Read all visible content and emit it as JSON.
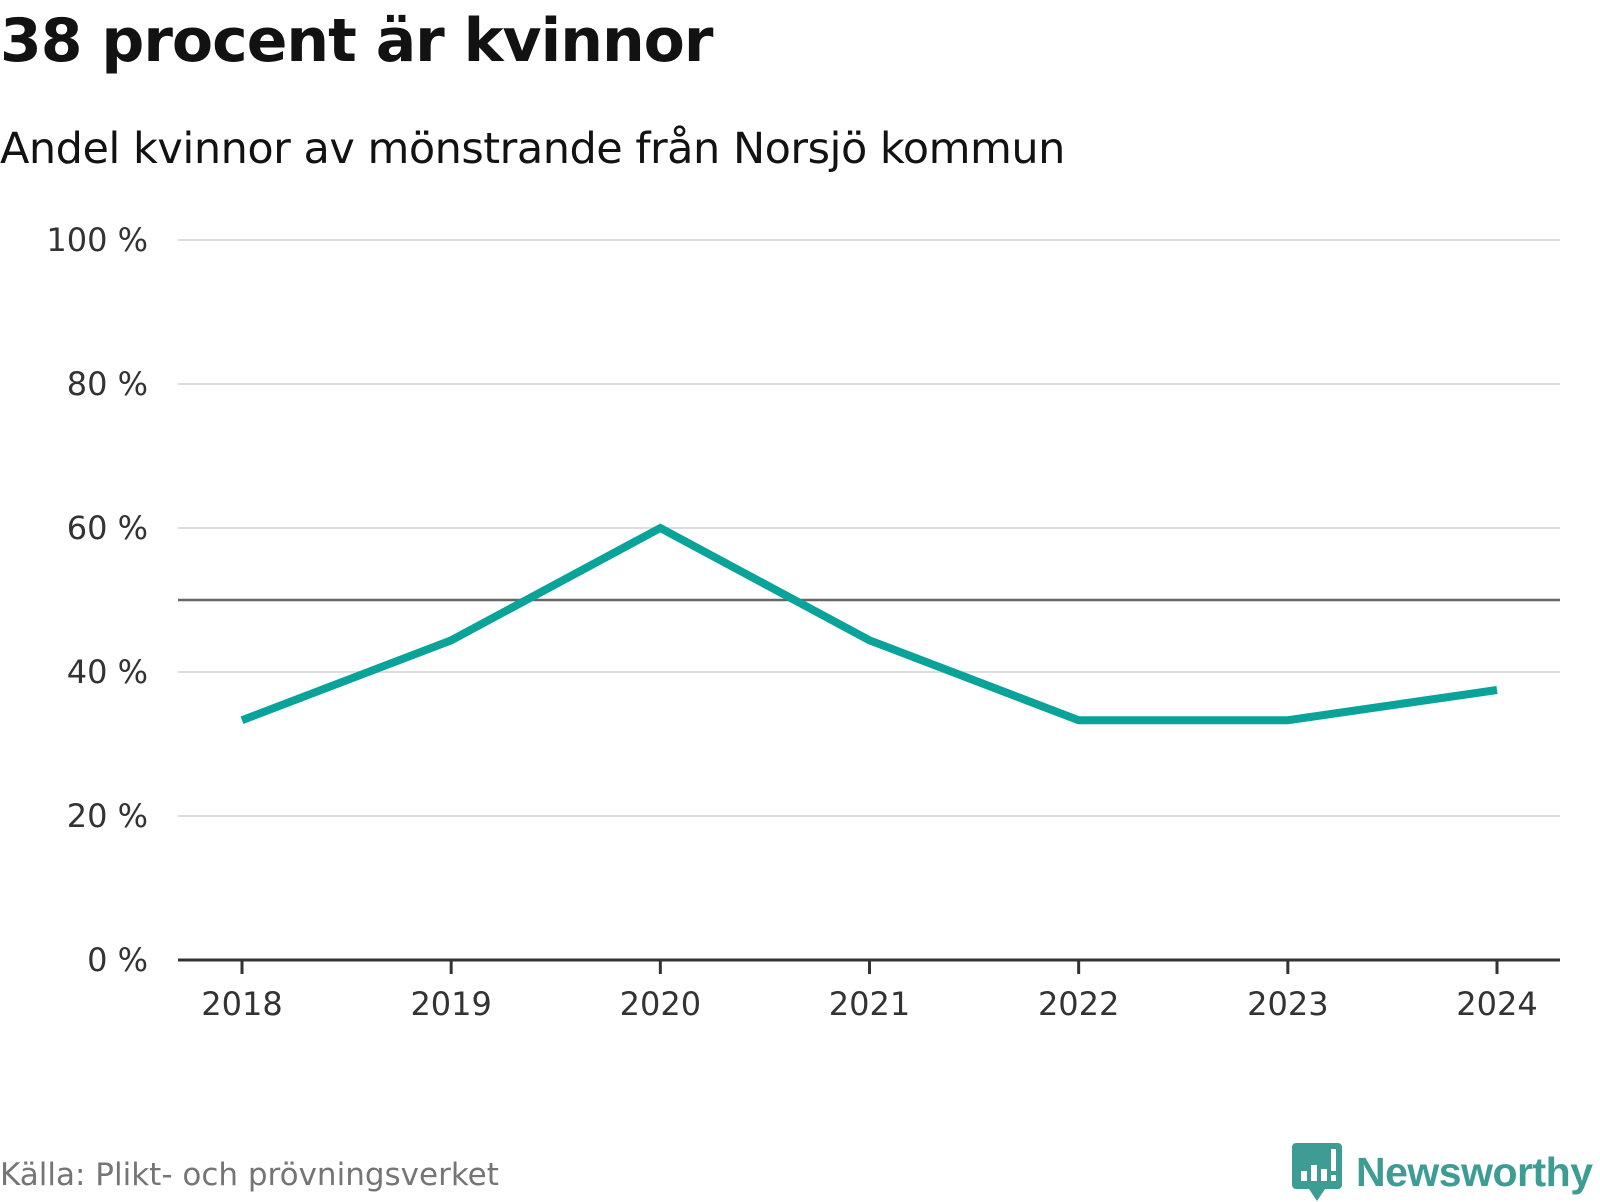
{
  "header": {
    "title": "38 procent är kvinnor",
    "subtitle": "Andel kvinnor av mönstrande från Norsjö kommun"
  },
  "footer": {
    "source": "Källa: Plikt- och prövningsverket",
    "brand": "Newsworthy"
  },
  "colors": {
    "line": "#0aa39a",
    "gridline": "#dddddd",
    "reference_line": "#666666",
    "axis": "#333333",
    "brand": "#3d9c94"
  },
  "icons": {
    "brand_logo": "bar-chart-speech-bubble-icon"
  },
  "chart_data": {
    "type": "line",
    "title": "38 procent är kvinnor",
    "subtitle": "Andel kvinnor av mönstrande från Norsjö kommun",
    "x": [
      "2018",
      "2019",
      "2020",
      "2021",
      "2022",
      "2023",
      "2024"
    ],
    "series": [
      {
        "name": "Andel kvinnor",
        "values": [
          33.3,
          44.4,
          60.0,
          44.4,
          33.3,
          33.3,
          37.5
        ]
      }
    ],
    "reference_line": 50,
    "ylim": [
      0,
      100
    ],
    "yticks": [
      0,
      20,
      40,
      60,
      80,
      100
    ],
    "ytick_labels": [
      "0 %",
      "20 %",
      "40 %",
      "60 %",
      "80 %",
      "100 %"
    ],
    "xlabel": "",
    "ylabel": "",
    "grid": true,
    "legend": "none"
  }
}
